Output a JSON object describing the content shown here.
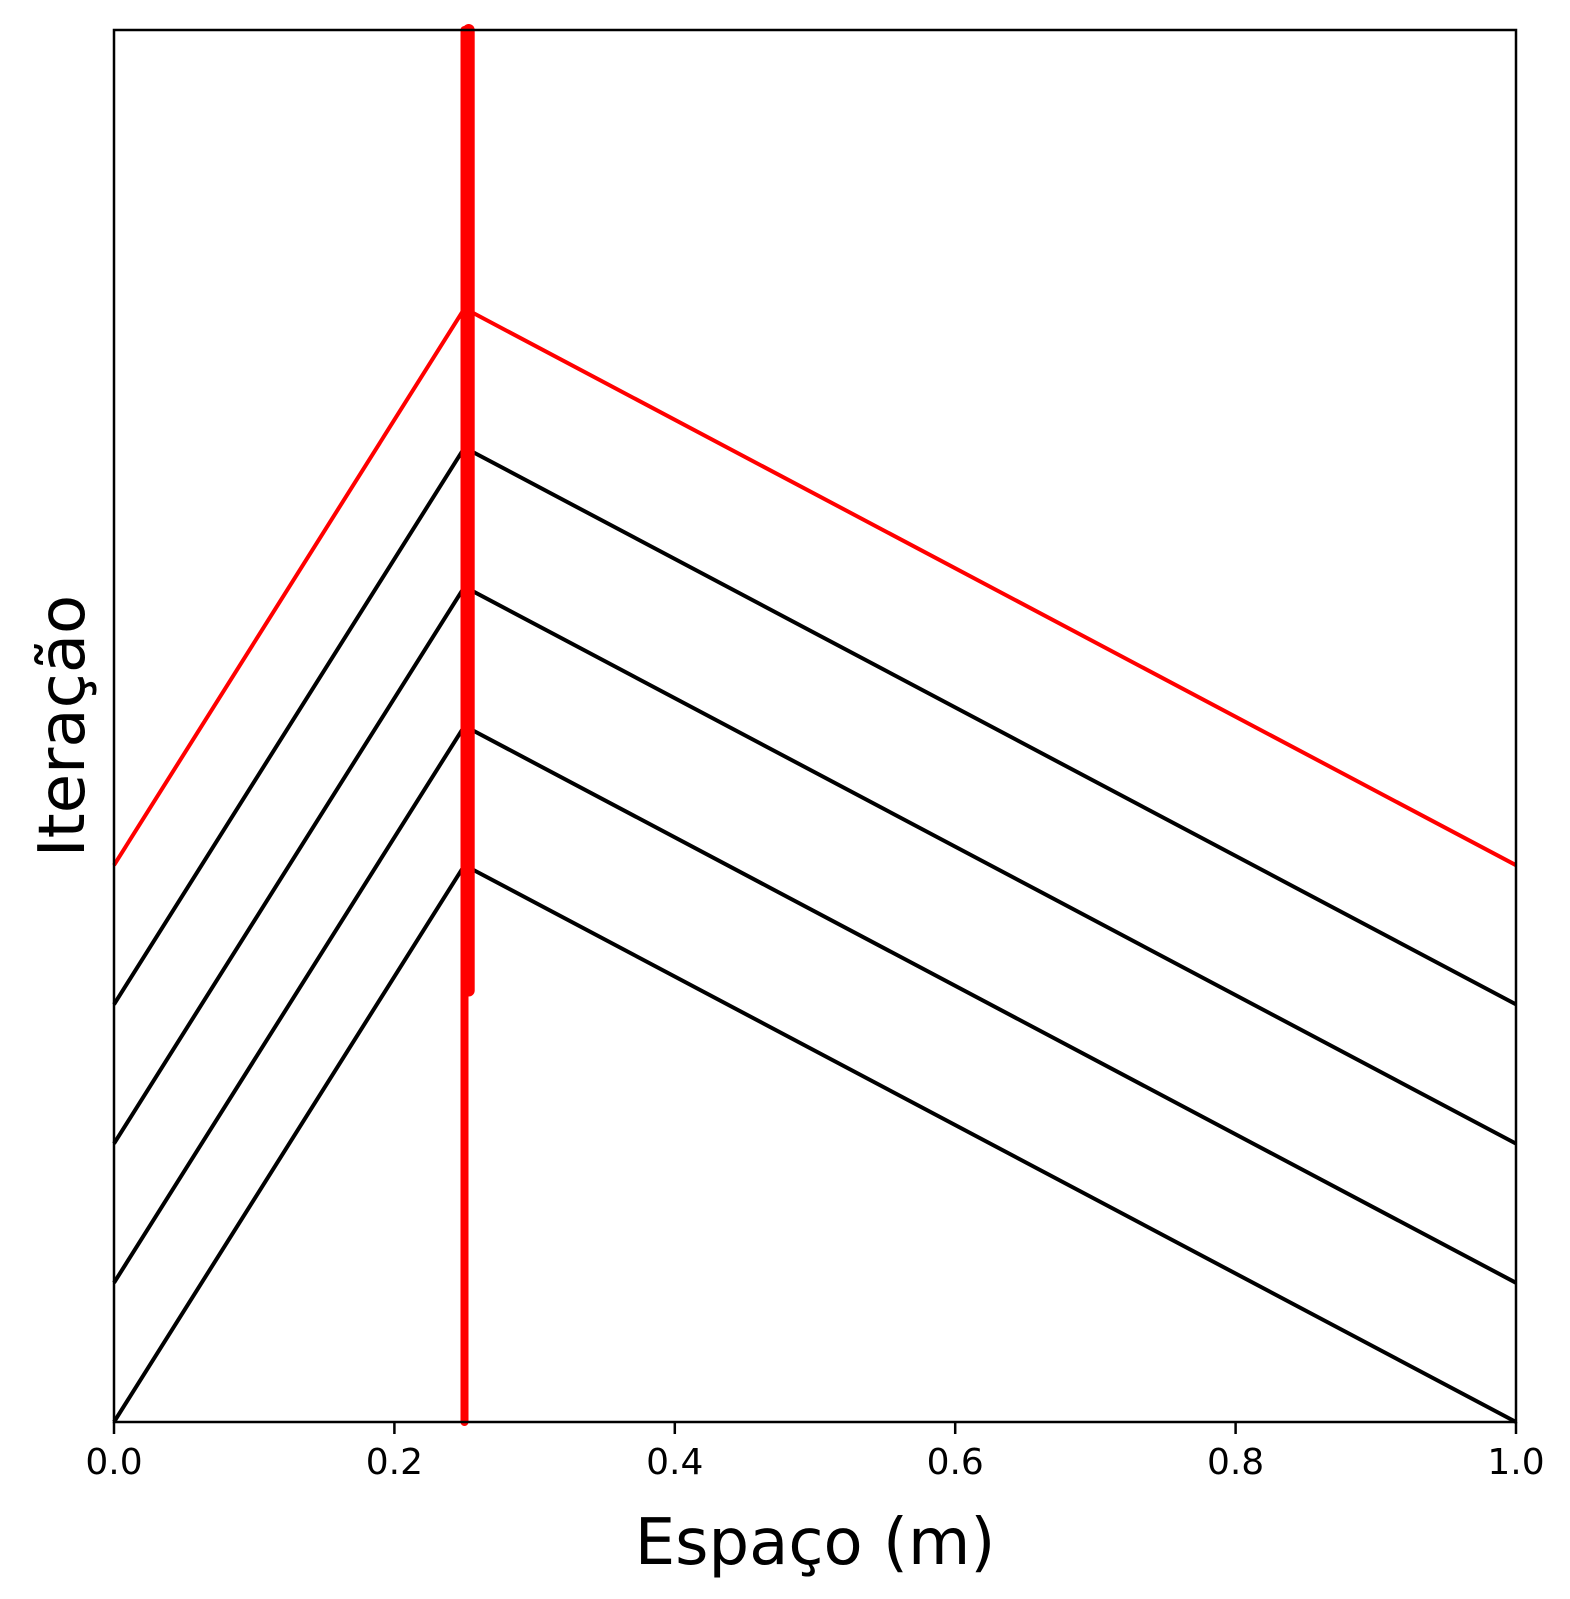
{
  "chart_data": {
    "type": "line",
    "title": "",
    "xlabel": "Espaço (m)",
    "ylabel": "Iteração",
    "xlim": [
      0.0,
      1.0
    ],
    "x_ticks": [
      "0.0",
      "0.2",
      "0.4",
      "0.6",
      "0.8",
      "1.0"
    ],
    "y_ticks_shown": false,
    "grid": false,
    "legend": "none",
    "series": [
      {
        "x": [
          0.0,
          0.25,
          1.0
        ],
        "y": [
          0,
          4,
          0
        ],
        "color": "#000000"
      },
      {
        "x": [
          0.0,
          0.25,
          1.0
        ],
        "y": [
          1,
          5,
          1
        ],
        "color": "#000000"
      },
      {
        "x": [
          0.0,
          0.25,
          1.0
        ],
        "y": [
          2,
          6,
          2
        ],
        "color": "#000000"
      },
      {
        "x": [
          0.0,
          0.25,
          1.0
        ],
        "y": [
          3,
          7,
          3
        ],
        "color": "#000000"
      },
      {
        "x": [
          0.0,
          0.25,
          1.0
        ],
        "y": [
          4,
          8,
          4
        ],
        "color": "#ff0000"
      }
    ],
    "vertical_markers": [
      {
        "x": 0.25,
        "y_range": [
          0,
          10
        ],
        "color": "#ff0000"
      },
      {
        "x": 0.25,
        "y_range": [
          3.1,
          10
        ],
        "color": "#ff0000"
      }
    ]
  }
}
